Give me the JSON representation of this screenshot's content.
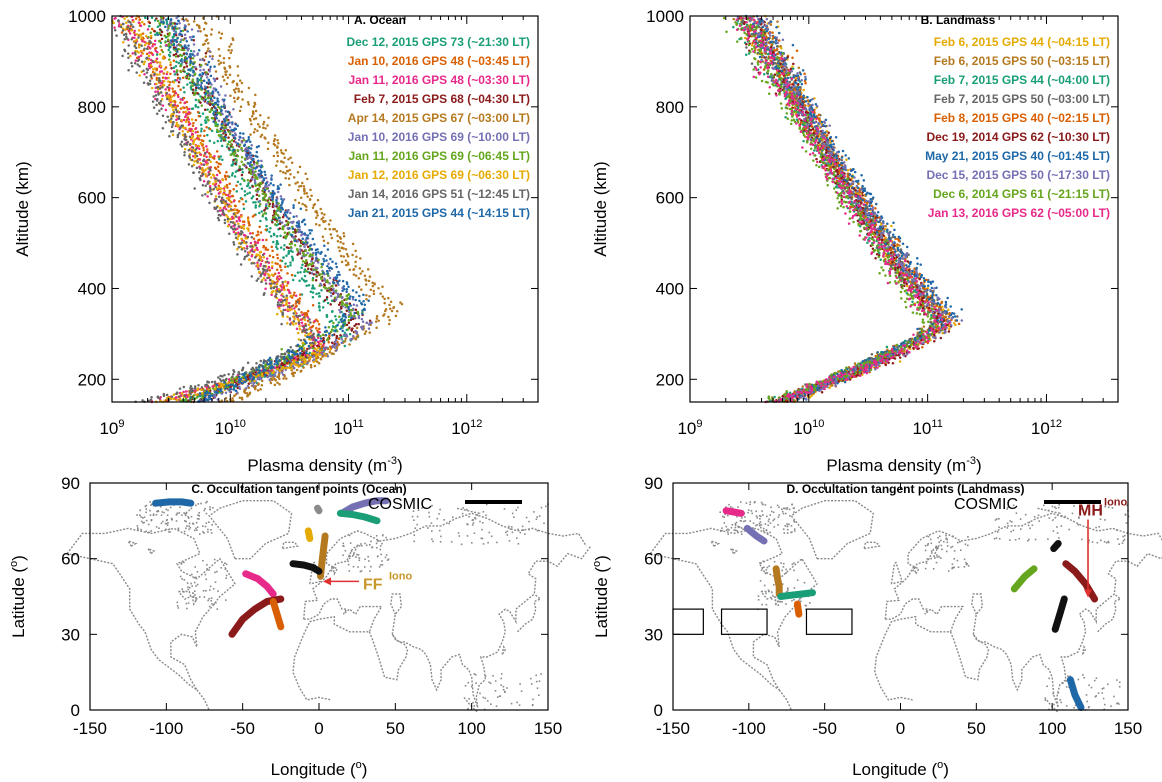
{
  "chart_data": [
    {
      "type": "scatter",
      "title": "A. Ocean",
      "xlabel_main": "Plasma density (m",
      "xlabel_sup": "-3",
      "xlabel_end": ")",
      "ylabel": "Altitude (km)",
      "xscale": "log",
      "xlim": [
        1000000000.0,
        4000000000000.0
      ],
      "ylim": [
        150,
        1000
      ],
      "xticks": [
        {
          "base": "10",
          "exp": "9"
        },
        {
          "base": "10",
          "exp": "10"
        },
        {
          "base": "10",
          "exp": "11"
        },
        {
          "base": "10",
          "exp": "12"
        }
      ],
      "yticks": [
        "200",
        "400",
        "600",
        "800",
        "1000"
      ],
      "legend_position": "top-right",
      "series": [
        {
          "name": "Dec 12, 2015 GPS 73 (~21:30 LT)",
          "color": "#1a9e77",
          "peak_density": 100000000000.0,
          "peak_alt": 300
        },
        {
          "name": "Jan 10, 2016 GPS 48 (~03:45 LT)",
          "color": "#d95f02",
          "peak_density": 70000000000.0,
          "peak_alt": 280
        },
        {
          "name": "Jan 11, 2016 GPS 48 (~03:30 LT)",
          "color": "#e7298a",
          "peak_density": 60000000000.0,
          "peak_alt": 270
        },
        {
          "name": "Feb 7,  2015 GPS 68 (~04:30 LT)",
          "color": "#8b1a1a",
          "peak_density": 120000000000.0,
          "peak_alt": 330
        },
        {
          "name": "Apr 14, 2015 GPS 67 (~03:00 LT)",
          "color": "#b5791f",
          "peak_density": 230000000000.0,
          "peak_alt": 360
        },
        {
          "name": "Jan 10, 2016 GPS 69 (~10:00 LT)",
          "color": "#7570b3",
          "peak_density": 140000000000.0,
          "peak_alt": 320
        },
        {
          "name": "Jan 11, 2016 GPS 69 (~06:45 LT)",
          "color": "#66a61e",
          "peak_density": 110000000000.0,
          "peak_alt": 350
        },
        {
          "name": "Jan 12, 2016 GPS 69 (~06:30 LT)",
          "color": "#e6ab02",
          "peak_density": 60000000000.0,
          "peak_alt": 260
        },
        {
          "name": "Jan 14, 2016 GPS 51 (~12:45 LT)",
          "color": "#666666",
          "peak_density": 50000000000.0,
          "peak_alt": 290
        },
        {
          "name": "Jan 21, 2015 GPS 44 (~14:15 LT)",
          "color": "#1f68a8",
          "peak_density": 130000000000.0,
          "peak_alt": 370
        }
      ]
    },
    {
      "type": "scatter",
      "title": "B. Landmass",
      "xlabel_main": "Plasma density (m",
      "xlabel_sup": "-3",
      "xlabel_end": ")",
      "ylabel": "Altitude (km)",
      "xscale": "log",
      "xlim": [
        1000000000.0,
        4000000000000.0
      ],
      "ylim": [
        150,
        1000
      ],
      "xticks": [
        {
          "base": "10",
          "exp": "9"
        },
        {
          "base": "10",
          "exp": "10"
        },
        {
          "base": "10",
          "exp": "11"
        },
        {
          "base": "10",
          "exp": "12"
        }
      ],
      "yticks": [
        "200",
        "400",
        "600",
        "800",
        "1000"
      ],
      "legend_position": "top-right",
      "series": [
        {
          "name": "Feb  6, 2015 GPS 44 (~04:15 LT)",
          "color": "#e6ab02",
          "peak_density": 150000000000.0,
          "peak_alt": 330
        },
        {
          "name": "Feb  6, 2015 GPS 50 (~03:15 LT)",
          "color": "#b5791f",
          "peak_density": 140000000000.0,
          "peak_alt": 340
        },
        {
          "name": "Feb  7, 2015 GPS 44 (~04:00 LT)",
          "color": "#1a9e77",
          "peak_density": 130000000000.0,
          "peak_alt": 330
        },
        {
          "name": "Feb  7, 2015 GPS 50 (~03:00 LT)",
          "color": "#666666",
          "peak_density": 140000000000.0,
          "peak_alt": 340
        },
        {
          "name": "Feb  8, 2015 GPS 40 (~02:15 LT)",
          "color": "#d95f02",
          "peak_density": 150000000000.0,
          "peak_alt": 330
        },
        {
          "name": "Dec  19, 2014 GPS 62 (~10:30 LT)",
          "color": "#8b1a1a",
          "peak_density": 140000000000.0,
          "peak_alt": 320
        },
        {
          "name": "May  21, 2015 GPS 40 (~01:45 LT)",
          "color": "#1f68a8",
          "peak_density": 160000000000.0,
          "peak_alt": 350
        },
        {
          "name": "Dec  15, 2015 GPS 50 (~17:30 LT)",
          "color": "#7570b3",
          "peak_density": 150000000000.0,
          "peak_alt": 330
        },
        {
          "name": "Dec   6, 2014 GPS 61 (~21:15 LT)",
          "color": "#66a61e",
          "peak_density": 120000000000.0,
          "peak_alt": 320
        },
        {
          "name": "Jan  13, 2016 GPS 62 (~05:00 LT)",
          "color": "#e7298a",
          "peak_density": 130000000000.0,
          "peak_alt": 320
        }
      ]
    },
    {
      "type": "scatter",
      "title": "C. Occultation tangent points (Ocean)",
      "xlabel_main": "Longitude (",
      "xlabel_sup": "o",
      "xlabel_end": ")",
      "ylabel_main": "Latitude (",
      "ylabel_sup": "o",
      "ylabel_end": ")",
      "xlim": [
        -150,
        150
      ],
      "ylim": [
        0,
        90
      ],
      "xticks": [
        "-150",
        "-100",
        "-50",
        "0",
        "50",
        "100",
        "150"
      ],
      "yticks": [
        "0",
        "30",
        "60",
        "90"
      ],
      "cosmic_label": "COSMIC",
      "annotation": {
        "text": "FF",
        "sup": "Iono",
        "lon": 0,
        "lat": 51
      },
      "tracks": [
        {
          "color": "#1f68a8",
          "lon": [
            -107,
            -98,
            -90,
            -84
          ],
          "lat": [
            82,
            82.5,
            82.5,
            82
          ]
        },
        {
          "color": "#7570b3",
          "lon": [
            15,
            22,
            30,
            38,
            44
          ],
          "lat": [
            78,
            80.5,
            82,
            83,
            83
          ]
        },
        {
          "color": "#1a9e77",
          "lon": [
            14,
            22,
            30,
            38
          ],
          "lat": [
            78,
            77.5,
            76.5,
            75
          ]
        },
        {
          "color": "#8b8b8b",
          "lon": [
            -1,
            0
          ],
          "lat": [
            80,
            79
          ]
        },
        {
          "color": "#e6ab02",
          "lon": [
            -7,
            -6
          ],
          "lat": [
            71,
            68
          ]
        },
        {
          "color": "#b5791f",
          "lon": [
            1,
            2,
            3,
            4
          ],
          "lat": [
            53,
            59,
            64,
            69
          ]
        },
        {
          "color": "#111111",
          "lon": [
            -17,
            -10,
            -4,
            0
          ],
          "lat": [
            58,
            57.5,
            56.5,
            55
          ]
        },
        {
          "color": "#e7298a",
          "lon": [
            -48,
            -40,
            -34,
            -30
          ],
          "lat": [
            54,
            52,
            49,
            46
          ]
        },
        {
          "color": "#8b1a1a",
          "lon": [
            -57,
            -50,
            -42,
            -34,
            -25
          ],
          "lat": [
            30,
            36,
            40,
            43,
            44
          ]
        },
        {
          "color": "#d95f02",
          "lon": [
            -30,
            -27,
            -25
          ],
          "lat": [
            43,
            37,
            33
          ]
        }
      ]
    },
    {
      "type": "scatter",
      "title": "D. Occultation tangent points (Landmass)",
      "xlabel_main": "Longitude (",
      "xlabel_sup": "o",
      "xlabel_end": ")",
      "ylabel_main": "Latitude (",
      "ylabel_sup": "o",
      "ylabel_end": ")",
      "xlim": [
        -150,
        150
      ],
      "ylim": [
        0,
        90
      ],
      "xticks": [
        "-150",
        "-100",
        "-50",
        "0",
        "50",
        "100",
        "150"
      ],
      "yticks": [
        "0",
        "30",
        "60",
        "90"
      ],
      "cosmic_label": "COSMIC",
      "annotation": {
        "text": "MH",
        "sup": "Iono",
        "lon": 121,
        "lat": 43
      },
      "tracks": [
        {
          "color": "#e7298a",
          "lon": [
            -115,
            -110,
            -105
          ],
          "lat": [
            79,
            78.5,
            78
          ]
        },
        {
          "color": "#7570b3",
          "lon": [
            -101,
            -95,
            -90
          ],
          "lat": [
            72,
            69,
            67
          ]
        },
        {
          "color": "#b5791f",
          "lon": [
            -82,
            -81,
            -80,
            -80
          ],
          "lat": [
            56,
            52,
            49,
            46
          ]
        },
        {
          "color": "#1a9e77",
          "lon": [
            -79,
            -72,
            -65,
            -58
          ],
          "lat": [
            45,
            45.5,
            46,
            46.5
          ]
        },
        {
          "color": "#d95f02",
          "lon": [
            -68,
            -67
          ],
          "lat": [
            42,
            38
          ]
        },
        {
          "color": "#66a61e",
          "lon": [
            75,
            82,
            88
          ],
          "lat": [
            48,
            53,
            56
          ]
        },
        {
          "color": "#111111",
          "lon": [
            101,
            104
          ],
          "lat": [
            64,
            66
          ]
        },
        {
          "color": "#8b1a1a",
          "lon": [
            109,
            115,
            122,
            128
          ],
          "lat": [
            58,
            55,
            50,
            44
          ]
        },
        {
          "color": "#111111",
          "lon": [
            102,
            105,
            108
          ],
          "lat": [
            32,
            38,
            44
          ]
        },
        {
          "color": "#1f68a8",
          "lon": [
            112,
            115,
            119
          ],
          "lat": [
            12,
            6,
            1
          ]
        }
      ]
    }
  ]
}
